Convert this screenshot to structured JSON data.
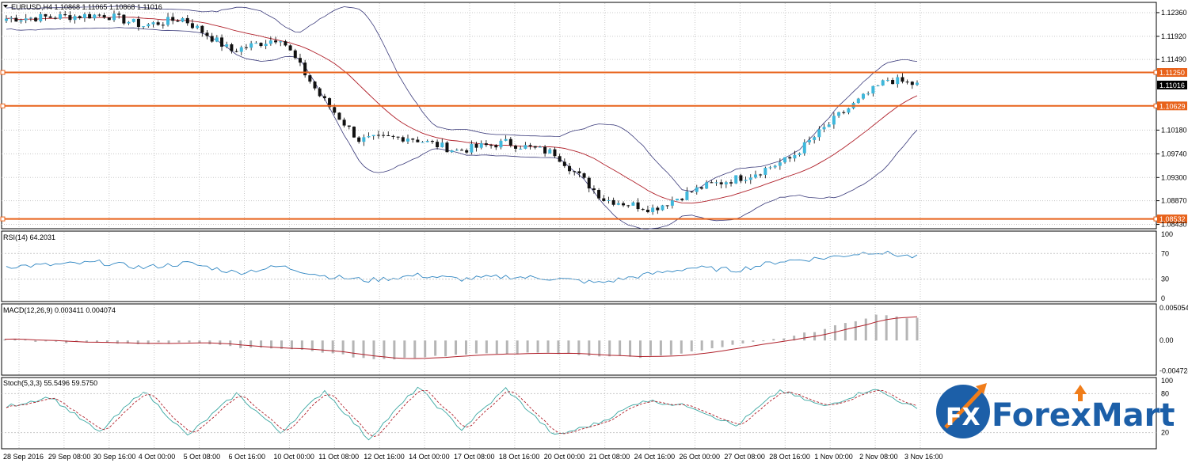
{
  "colors": {
    "bull": "#3fb8dc",
    "bear": "#111111",
    "ma": "#b0202a",
    "band": "#3a3a7a",
    "level": "#e8621a",
    "rsi": "#2f86c2",
    "macd_hist": "#b5b5b5",
    "macd_signal": "#b0202a",
    "stoch_main": "#3aa7a2",
    "stoch_signal": "#b0202a",
    "grid": "#c8c8c8",
    "logo_blue": "#1c5fa8",
    "logo_orange": "#f07d1a"
  },
  "main": {
    "header": "EURUSD,H4  1.10868 1.11065 1.10868 1.11016",
    "price_ticks": [
      "1.12360",
      "1.11920",
      "1.11490",
      "1.10180",
      "1.09740",
      "1.09300",
      "1.08870",
      "1.08430"
    ],
    "ylim": [
      1.0835,
      1.1255
    ]
  },
  "levels": [
    {
      "value": 1.1125,
      "label": "1.11250"
    },
    {
      "value": 1.10629,
      "label": "1.10629"
    },
    {
      "value": 1.08532,
      "label": "1.08532"
    }
  ],
  "current_price": {
    "value": 1.11016,
    "label": "1.11016"
  },
  "rsi": {
    "label": "RSI(14) 64.2031",
    "ticks": [
      "100",
      "70",
      "30",
      "0"
    ],
    "ylim": [
      0,
      100
    ]
  },
  "macd": {
    "label": "MACD(12,26,9) 0.003411 0.004074",
    "ticks": [
      "0.005054",
      "0.00",
      "-0.004724"
    ],
    "ylim": [
      -0.0049,
      0.0052
    ]
  },
  "stoch": {
    "label": "Stoch(5,3,3) 55.5496 59.5750",
    "ticks": [
      "100",
      "80",
      "20"
    ],
    "ylim": [
      0,
      100
    ]
  },
  "x_labels": [
    "28 Sep 2016",
    "29 Sep 08:00",
    "30 Sep 16:00",
    "4 Oct 00:00",
    "5 Oct 08:00",
    "6 Oct 16:00",
    "10 Oct 00:00",
    "11 Oct 08:00",
    "12 Oct 16:00",
    "14 Oct 00:00",
    "17 Oct 08:00",
    "18 Oct 16:00",
    "20 Oct 00:00",
    "21 Oct 08:00",
    "24 Oct 16:00",
    "26 Oct 00:00",
    "27 Oct 08:00",
    "28 Oct 16:00",
    "1 Nov 00:00",
    "2 Nov 08:00",
    "3 Nov 16:00"
  ],
  "logo": {
    "fx": "FX",
    "brand": "ForexMart"
  },
  "chart_data": {
    "type": "line",
    "title": "EURUSD,H4",
    "x": [
      "28 Sep 2016",
      "29 Sep 08:00",
      "30 Sep 16:00",
      "4 Oct 00:00",
      "5 Oct 08:00",
      "6 Oct 16:00",
      "10 Oct 00:00",
      "11 Oct 08:00",
      "12 Oct 16:00",
      "14 Oct 00:00",
      "17 Oct 08:00",
      "18 Oct 16:00",
      "20 Oct 00:00",
      "21 Oct 08:00",
      "24 Oct 16:00",
      "26 Oct 00:00",
      "27 Oct 08:00",
      "28 Oct 16:00",
      "1 Nov 00:00",
      "2 Nov 08:00",
      "3 Nov 16:00"
    ],
    "series": [
      {
        "name": "EURUSD,H4",
        "values": [
          1.1225,
          1.1228,
          1.1232,
          1.1212,
          1.1225,
          1.1165,
          1.119,
          1.1082,
          1.1,
          1.1005,
          1.098,
          1.0995,
          1.0975,
          1.089,
          1.0872,
          1.0912,
          1.0935,
          1.0965,
          1.1045,
          1.1112,
          1.1102
        ]
      },
      {
        "name": "RSI(14)",
        "values": [
          50,
          52,
          56,
          48,
          55,
          40,
          50,
          35,
          28,
          36,
          30,
          34,
          31,
          24,
          36,
          48,
          44,
          58,
          63,
          73,
          64
        ]
      },
      {
        "name": "MACD(12,26,9)",
        "values": [
          0.0002,
          -0.0002,
          -0.0004,
          -0.0005,
          -0.0002,
          -0.001,
          -0.0012,
          -0.0018,
          -0.003,
          -0.0026,
          -0.0022,
          -0.002,
          -0.002,
          -0.0024,
          -0.0026,
          -0.0018,
          -0.0008,
          0.0004,
          0.0018,
          0.004,
          0.0034
        ]
      },
      {
        "name": "Stoch(5,3,3)",
        "values": [
          60,
          75,
          20,
          85,
          15,
          80,
          20,
          85,
          10,
          90,
          25,
          88,
          15,
          35,
          70,
          60,
          30,
          85,
          60,
          88,
          56
        ]
      }
    ],
    "ylim": [
      1.0835,
      1.1255
    ]
  }
}
